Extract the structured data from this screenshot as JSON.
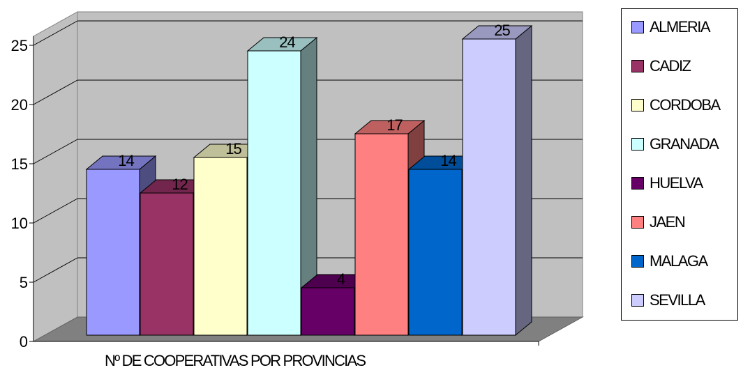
{
  "chart_data": {
    "type": "bar",
    "xlabel": "Nº DE COOPERATIVAS POR PROVINCIAS",
    "ylim": [
      0,
      25
    ],
    "yticks": [
      0,
      5,
      10,
      15,
      20,
      25
    ],
    "grid": true,
    "legend_position": "right",
    "style": "3d-clustered",
    "series": [
      {
        "name": "ALMERIA",
        "values": [
          14
        ],
        "color": "#9999FF"
      },
      {
        "name": "CADIZ",
        "values": [
          12
        ],
        "color": "#993366"
      },
      {
        "name": "CORDOBA",
        "values": [
          15
        ],
        "color": "#FFFFCC"
      },
      {
        "name": "GRANADA",
        "values": [
          24
        ],
        "color": "#CCFFFF"
      },
      {
        "name": "HUELVA",
        "values": [
          4
        ],
        "color": "#660066"
      },
      {
        "name": "JAEN",
        "values": [
          17
        ],
        "color": "#FF8080"
      },
      {
        "name": "MALAGA",
        "values": [
          14
        ],
        "color": "#0066CC"
      },
      {
        "name": "SEVILLA",
        "values": [
          25
        ],
        "color": "#CCCCFF"
      }
    ]
  }
}
